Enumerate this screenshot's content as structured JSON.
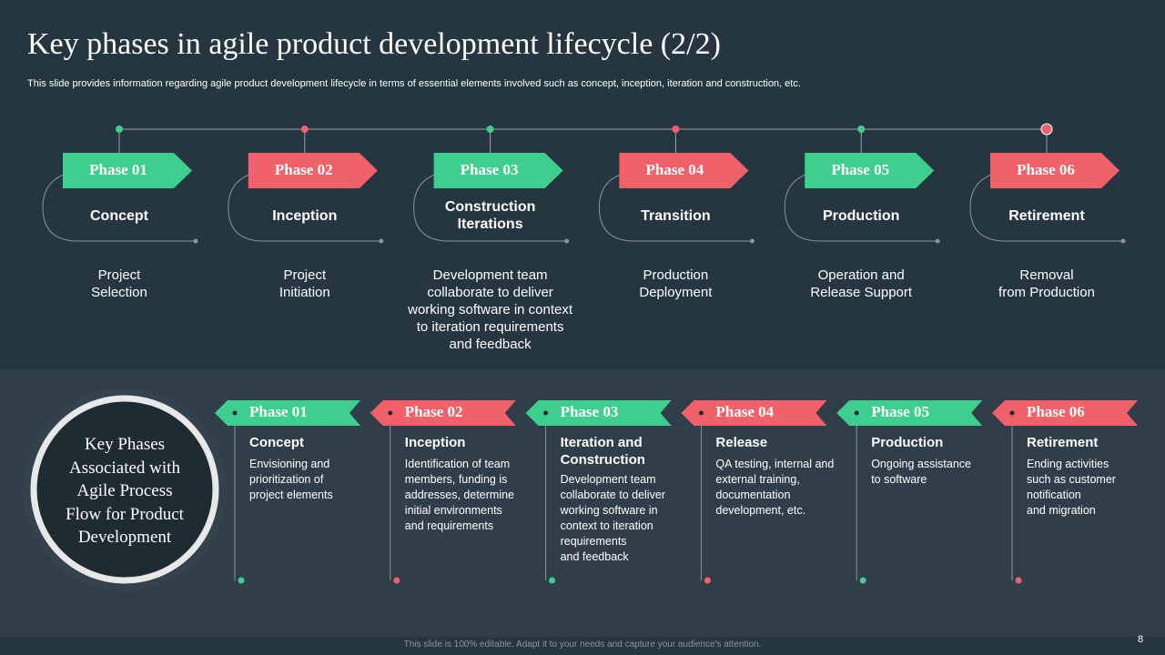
{
  "title": "Key phases in agile product development lifecycle (2/2)",
  "subtitle": "This slide provides information regarding agile product development lifecycle in terms of essential elements involved such as concept, inception, iteration and construction, etc.",
  "top_phases": [
    {
      "phase": "Phase 01",
      "name": "Concept",
      "description": "Project\nSelection"
    },
    {
      "phase": "Phase 02",
      "name": "Inception",
      "description": "Project\nInitiation"
    },
    {
      "phase": "Phase 03",
      "name": "Construction\nIterations",
      "description": "Development team\ncollaborate to deliver\nworking software in context\nto iteration requirements\nand feedback"
    },
    {
      "phase": "Phase 04",
      "name": "Transition",
      "description": "Production\nDeployment"
    },
    {
      "phase": "Phase 05",
      "name": "Production",
      "description": "Operation and\nRelease Support"
    },
    {
      "phase": "Phase 06",
      "name": "Retirement",
      "description": "Removal\nfrom Production"
    }
  ],
  "circle_text": "Key Phases\nAssociated with\nAgile Process\nFlow for Product\nDevelopment",
  "bottom_phases": [
    {
      "phase": "Phase 01",
      "name": "Concept",
      "description": "Envisioning and\nprioritization of\nproject elements"
    },
    {
      "phase": "Phase 02",
      "name": "Inception",
      "description": "Identification of team\nmembers, funding is\naddresses, determine\ninitial environments\nand requirements"
    },
    {
      "phase": "Phase 03",
      "name": "Iteration and\nConstruction",
      "description": "Development team\ncollaborate to deliver\nworking software in\ncontext to iteration\nrequirements\nand feedback"
    },
    {
      "phase": "Phase 04",
      "name": "Release",
      "description": "QA testing, internal and\nexternal training,\ndocumentation\ndevelopment, etc."
    },
    {
      "phase": "Phase 05",
      "name": "Production",
      "description": "Ongoing assistance\nto software"
    },
    {
      "phase": "Phase 06",
      "name": "Retirement",
      "description": "Ending activities\nsuch as customer\nnotification\nand migration"
    }
  ],
  "footer": "This slide is 100% editable. Adapt it to your needs and capture your audience's attention.",
  "page_number": "8"
}
